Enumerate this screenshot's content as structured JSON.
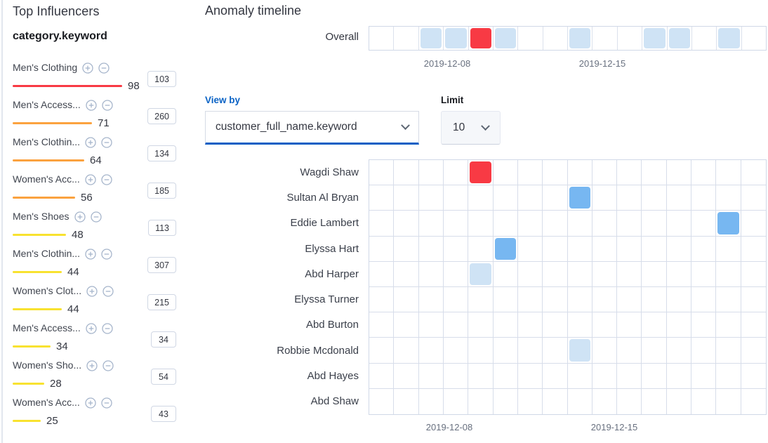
{
  "sidebar": {
    "title": "Top Influencers",
    "field": "category.keyword",
    "items": [
      {
        "label": "Men's Clothing",
        "score": 98,
        "badge": "103",
        "severity": "critical"
      },
      {
        "label": "Men's Access...",
        "score": 71,
        "badge": "260",
        "severity": "major"
      },
      {
        "label": "Men's Clothin...",
        "score": 64,
        "badge": "134",
        "severity": "major"
      },
      {
        "label": "Women's Acc...",
        "score": 56,
        "badge": "185",
        "severity": "major"
      },
      {
        "label": "Men's Shoes",
        "score": 48,
        "badge": "113",
        "severity": "minor"
      },
      {
        "label": "Men's Clothin...",
        "score": 44,
        "badge": "307",
        "severity": "minor"
      },
      {
        "label": "Women's Clot...",
        "score": 44,
        "badge": "215",
        "severity": "minor"
      },
      {
        "label": "Men's Access...",
        "score": 34,
        "badge": "34",
        "severity": "minor"
      },
      {
        "label": "Women's Sho...",
        "score": 28,
        "badge": "54",
        "severity": "minor"
      },
      {
        "label": "Women's Acc...",
        "score": 25,
        "badge": "43",
        "severity": "minor"
      }
    ]
  },
  "timeline": {
    "title": "Anomaly timeline",
    "overall_label": "Overall",
    "overall_cells": [
      "none",
      "none",
      "low",
      "low",
      "critical",
      "low",
      "none",
      "none",
      "low",
      "none",
      "none",
      "low",
      "low",
      "none",
      "low",
      "none"
    ],
    "axis_top": [
      "2019-12-08",
      "2019-12-15"
    ],
    "axis_bottom": [
      "2019-12-08",
      "2019-12-15"
    ]
  },
  "controls": {
    "view_by_label": "View by",
    "view_by_value": "customer_full_name.keyword",
    "limit_label": "Limit",
    "limit_value": "10"
  },
  "viewby": {
    "columns": 16,
    "rows": [
      {
        "label": "Wagdi Shaw",
        "cells": [
          {
            "col": 4,
            "severity": "critical"
          }
        ]
      },
      {
        "label": "Sultan Al Bryan",
        "cells": [
          {
            "col": 8,
            "severity": "warning"
          }
        ]
      },
      {
        "label": "Eddie Lambert",
        "cells": [
          {
            "col": 14,
            "severity": "warning"
          }
        ]
      },
      {
        "label": "Elyssa Hart",
        "cells": [
          {
            "col": 5,
            "severity": "warning"
          }
        ]
      },
      {
        "label": "Abd Harper",
        "cells": [
          {
            "col": 4,
            "severity": "low"
          }
        ]
      },
      {
        "label": "Elyssa Turner",
        "cells": []
      },
      {
        "label": "Abd Burton",
        "cells": []
      },
      {
        "label": "Robbie Mcdonald",
        "cells": [
          {
            "col": 8,
            "severity": "low"
          }
        ]
      },
      {
        "label": "Abd Hayes",
        "cells": []
      },
      {
        "label": "Abd Shaw",
        "cells": []
      }
    ]
  },
  "colors": {
    "critical": "#f83a44",
    "major": "#fba23f",
    "minor": "#f8e230",
    "warning": "#77b7f1",
    "low": "#cfe3f5",
    "accent_blue": "#0a5fc4",
    "icon_gray_blue": "#a6b5cb"
  }
}
